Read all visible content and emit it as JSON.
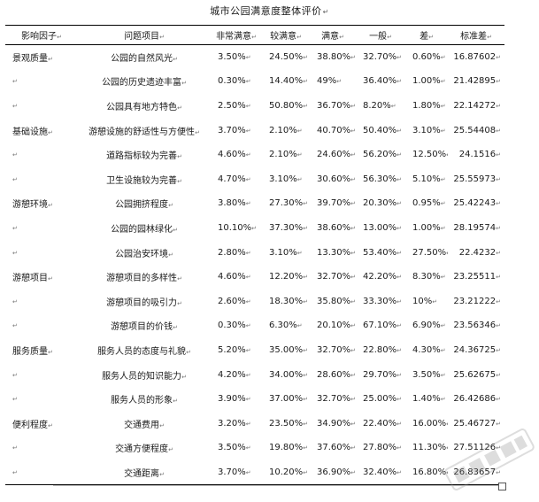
{
  "title": "城市公园满意度整体评价",
  "title_mark": "↵",
  "cell_mark": "↵",
  "row_mark": "↵",
  "headers": [
    "影响因子",
    "问题项目",
    "非常满意",
    "较满意",
    "满意",
    "一般",
    "差",
    "标准差"
  ],
  "rows": [
    {
      "factor": "景观质量",
      "item": "公园的自然风光",
      "v": [
        "3.50%",
        "24.50%",
        "38.80%",
        "32.70%",
        "0.60%"
      ],
      "std": "16.87602"
    },
    {
      "factor": "",
      "item": "公园的历史遗迹丰富",
      "v": [
        "0.30%",
        "14.40%",
        "49%",
        "36.40%",
        "1.00%"
      ],
      "std": "21.42895"
    },
    {
      "factor": "",
      "item": "公园具有地方特色",
      "v": [
        "2.50%",
        "50.80%",
        "36.70%",
        "8.20%",
        "1.80%"
      ],
      "std": "22.14272"
    },
    {
      "factor": "基础设施",
      "item": "游憩设施的舒适性与方便性",
      "v": [
        "3.70%",
        "2.10%",
        "40.70%",
        "50.40%",
        "3.10%"
      ],
      "std": "25.54408"
    },
    {
      "factor": "",
      "item": "道路指标较为完善",
      "v": [
        "4.60%",
        "2.10%",
        "24.60%",
        "56.20%",
        "12.50%"
      ],
      "std": "24.1516"
    },
    {
      "factor": "",
      "item": "卫生设施较为完善",
      "v": [
        "4.70%",
        "3.10%",
        "30.60%",
        "56.30%",
        "5.10%"
      ],
      "std": "25.55973"
    },
    {
      "factor": "游憩环境",
      "item": "公园拥挤程度",
      "v": [
        "3.80%",
        "27.30%",
        "39.70%",
        "20.30%",
        "0.95%"
      ],
      "std": "25.42243"
    },
    {
      "factor": "",
      "item": "公园的园林绿化",
      "v": [
        "10.10%",
        "37.30%",
        "38.60%",
        "13.00%",
        "1.00%"
      ],
      "std": "28.19574"
    },
    {
      "factor": "",
      "item": "公园治安环境",
      "v": [
        "2.80%",
        "3.10%",
        "13.30%",
        "53.40%",
        "27.50%"
      ],
      "std": "22.4232"
    },
    {
      "factor": "游憩项目",
      "item": "游憩项目的多样性",
      "v": [
        "4.60%",
        "12.20%",
        "32.70%",
        "42.20%",
        "8.30%"
      ],
      "std": "23.25511"
    },
    {
      "factor": "",
      "item": "游憩项目的吸引力",
      "v": [
        "2.60%",
        "18.30%",
        "35.80%",
        "33.30%",
        "10%"
      ],
      "std": "23.21222"
    },
    {
      "factor": "",
      "item": "游憩项目的价钱",
      "v": [
        "0.30%",
        "6.30%",
        "20.10%",
        "67.10%",
        "6.90%"
      ],
      "std": "23.56346"
    },
    {
      "factor": "服务质量",
      "item": "服务人员的态度与礼貌",
      "v": [
        "5.20%",
        "35.00%",
        "32.70%",
        "22.80%",
        "4.30%"
      ],
      "std": "24.36725"
    },
    {
      "factor": "",
      "item": "服务人员的知识能力",
      "v": [
        "4.20%",
        "34.00%",
        "28.60%",
        "29.70%",
        "3.50%"
      ],
      "std": "25.62675"
    },
    {
      "factor": "",
      "item": "服务人员的形象",
      "v": [
        "3.90%",
        "37.00%",
        "32.70%",
        "25.00%",
        "1.40%"
      ],
      "std": "26.42686"
    },
    {
      "factor": "便利程度",
      "item": "交通费用",
      "v": [
        "3.20%",
        "23.50%",
        "34.90%",
        "22.40%",
        "16.00%"
      ],
      "std": "25.46727"
    },
    {
      "factor": "",
      "item": "交通方便程度",
      "v": [
        "3.50%",
        "19.80%",
        "37.60%",
        "27.80%",
        "11.30%"
      ],
      "std": "27.51126"
    },
    {
      "factor": "",
      "item": "交通距离",
      "v": [
        "3.70%",
        "10.20%",
        "36.90%",
        "32.40%",
        "16.80%"
      ],
      "std": "26.83657"
    }
  ]
}
